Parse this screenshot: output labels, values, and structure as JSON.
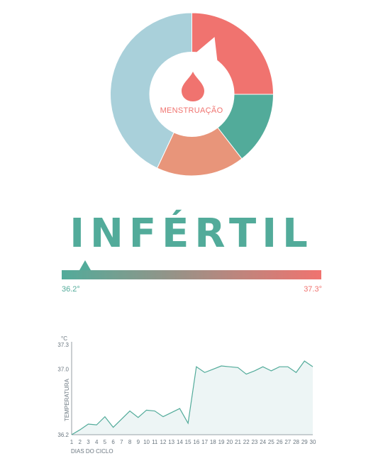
{
  "cycle_wheel": {
    "phase_label": "MENSTRUAÇÃO",
    "icon": "blood-drop-icon",
    "segments": [
      {
        "name": "menstruação",
        "fraction": 0.25,
        "color": "#f0736f"
      },
      {
        "name": "fase-2",
        "fraction": 0.145,
        "color": "#52ab9a"
      },
      {
        "name": "fase-3",
        "fraction": 0.175,
        "color": "#e8957a"
      },
      {
        "name": "fase-4",
        "fraction": 0.43,
        "color": "#a9d0da"
      }
    ],
    "pointer_fraction": 0.06
  },
  "status": {
    "title": "INFÉRTIL",
    "title_color": "#52ab9a"
  },
  "temperature_scale": {
    "min_label": "36.2°",
    "max_label": "37.3°",
    "min_color": "#52ab9a",
    "max_color": "#f0736f",
    "marker_fraction": 0.09
  },
  "chart_data": {
    "type": "area",
    "unit_label": "°C",
    "xlabel": "DIAS DO CICLO",
    "ylabel": "TEMPERATURA",
    "ylim": [
      36.2,
      37.3
    ],
    "yticks": [
      "36.2",
      "37.0",
      "37.3"
    ],
    "ytick_values": [
      36.2,
      37.0,
      37.3
    ],
    "x": [
      1,
      2,
      3,
      4,
      5,
      6,
      7,
      8,
      9,
      10,
      11,
      12,
      13,
      14,
      15,
      16,
      17,
      18,
      19,
      20,
      21,
      22,
      23,
      24,
      25,
      26,
      27,
      28,
      29,
      30
    ],
    "values": [
      36.2,
      36.26,
      36.33,
      36.32,
      36.42,
      36.29,
      36.39,
      36.49,
      36.41,
      36.5,
      36.49,
      36.42,
      36.47,
      36.52,
      36.34,
      37.03,
      36.96,
      37.0,
      37.04,
      37.03,
      37.02,
      36.94,
      36.98,
      37.03,
      36.98,
      37.03,
      37.03,
      36.96,
      37.1,
      37.03
    ],
    "line_color": "#52ab9a",
    "fill_color": "#edf5f5"
  }
}
